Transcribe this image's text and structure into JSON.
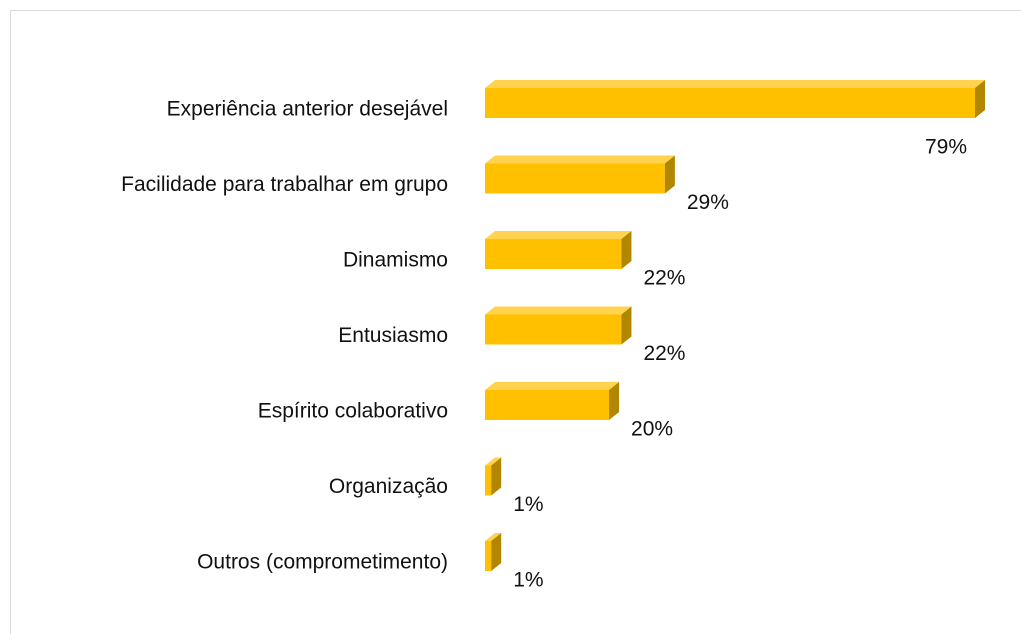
{
  "chart_data": {
    "type": "bar",
    "orientation": "horizontal",
    "categories": [
      "Experiência anterior desejável",
      "Facilidade para trabalhar em grupo",
      "Dinamismo",
      "Entusiasmo",
      "Espírito colaborativo",
      "Organização",
      "Outros (comprometimento)"
    ],
    "values": [
      79,
      29,
      22,
      22,
      20,
      1,
      1
    ],
    "value_labels": [
      "79%",
      "29%",
      "22%",
      "22%",
      "20%",
      "1%",
      "1%"
    ],
    "color": "#ffc000"
  }
}
